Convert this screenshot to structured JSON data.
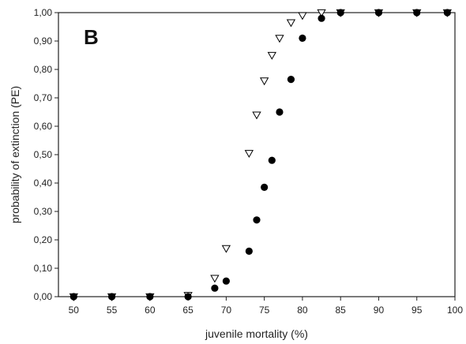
{
  "chart_data": {
    "type": "scatter",
    "panel_label": "B",
    "xlabel": "juvenile mortality (%)",
    "ylabel": "probability of extinction (PE)",
    "xlim": [
      48,
      100
    ],
    "ylim": [
      0,
      1
    ],
    "x_ticks": [
      50,
      55,
      60,
      65,
      70,
      75,
      80,
      85,
      90,
      95,
      100
    ],
    "x_tick_labels": [
      "50",
      "55",
      "60",
      "65",
      "70",
      "75",
      "80",
      "85",
      "90",
      "95",
      "100"
    ],
    "y_ticks": [
      0,
      0.1,
      0.2,
      0.3,
      0.4,
      0.5,
      0.6,
      0.7,
      0.8,
      0.9,
      1.0
    ],
    "y_tick_labels": [
      "0,00",
      "0,10",
      "0,20",
      "0,30",
      "0,40",
      "0,50",
      "0,60",
      "0,70",
      "0,80",
      "0,90",
      "1,00"
    ],
    "grid": false,
    "legend": "none",
    "series": [
      {
        "marker": "filled-circle",
        "color": "#000000",
        "points": [
          [
            50,
            0.0
          ],
          [
            55,
            0.0
          ],
          [
            60,
            0.0
          ],
          [
            65,
            0.0
          ],
          [
            68.5,
            0.03
          ],
          [
            70,
            0.055
          ],
          [
            73,
            0.16
          ],
          [
            74,
            0.27
          ],
          [
            75,
            0.385
          ],
          [
            76,
            0.48
          ],
          [
            77,
            0.65
          ],
          [
            78.5,
            0.765
          ],
          [
            80,
            0.91
          ],
          [
            82.5,
            0.98
          ],
          [
            85,
            1.0
          ],
          [
            90,
            1.0
          ],
          [
            95,
            1.0
          ],
          [
            99,
            1.0
          ]
        ]
      },
      {
        "marker": "open-triangle-down",
        "color": "#000000",
        "points": [
          [
            50,
            0.0
          ],
          [
            55,
            0.0
          ],
          [
            60,
            0.0
          ],
          [
            65,
            0.005
          ],
          [
            68.5,
            0.065
          ],
          [
            70,
            0.17
          ],
          [
            73,
            0.505
          ],
          [
            74,
            0.64
          ],
          [
            75,
            0.76
          ],
          [
            76,
            0.85
          ],
          [
            77,
            0.91
          ],
          [
            78.5,
            0.965
          ],
          [
            80,
            0.99
          ],
          [
            82.5,
            1.0
          ],
          [
            85,
            1.0
          ],
          [
            90,
            1.0
          ],
          [
            95,
            1.0
          ],
          [
            99,
            1.0
          ]
        ]
      }
    ]
  }
}
